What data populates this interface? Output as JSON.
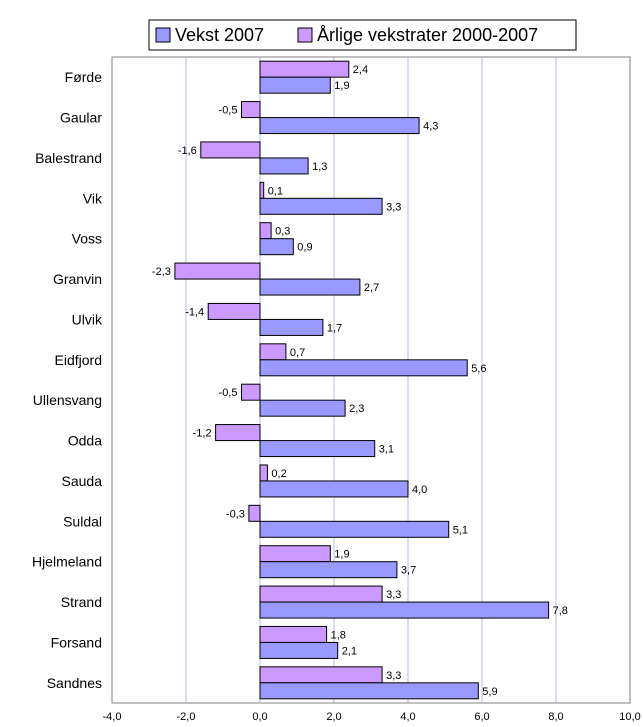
{
  "colors": {
    "series_vekst": "#9999ff",
    "series_arlige": "#cc99ff",
    "grid": "#b8b8e8",
    "plot_border": "#808080",
    "bar_stroke": "#000000"
  },
  "chart_data": {
    "type": "bar",
    "orientation": "horizontal",
    "categories": [
      "Førde",
      "Gaular",
      "Balestrand",
      "Vik",
      "Voss",
      "Granvin",
      "Ulvik",
      "Eidfjord",
      "Ullensvang",
      "Odda",
      "Sauda",
      "Suldal",
      "Hjelmeland",
      "Strand",
      "Forsand",
      "Sandnes"
    ],
    "series": [
      {
        "name": "Vekst 2007",
        "values": [
          1.9,
          4.3,
          1.3,
          3.3,
          0.9,
          2.7,
          1.7,
          5.6,
          2.3,
          3.1,
          4.0,
          5.1,
          3.7,
          7.8,
          2.1,
          5.9
        ],
        "labels": [
          "1,9",
          "4,3",
          "1,3",
          "3,3",
          "0,9",
          "2,7",
          "1,7",
          "5,6",
          "2,3",
          "3,1",
          "4,0",
          "5,1",
          "3,7",
          "7,8",
          "2,1",
          "5,9"
        ]
      },
      {
        "name": "Årlige vekstrater 2000-2007",
        "values": [
          2.4,
          -0.5,
          -1.6,
          0.1,
          0.3,
          -2.3,
          -1.4,
          0.7,
          -0.5,
          -1.2,
          0.2,
          -0.3,
          1.9,
          3.3,
          1.8,
          3.3
        ],
        "labels": [
          "2,4",
          "-0,5",
          "-1,6",
          "0,1",
          "0,3",
          "-2,3",
          "-1,4",
          "0,7",
          "-0,5",
          "-1,2",
          "0,2",
          "-0,3",
          "1,9",
          "3,3",
          "1,8",
          "3,3"
        ]
      }
    ],
    "xlim": [
      -4.0,
      10.0
    ],
    "xticks": [
      -4.0,
      -2.0,
      0.0,
      2.0,
      4.0,
      6.0,
      8.0,
      10.0
    ],
    "xtick_labels": [
      "-4,0",
      "-2,0",
      "0,0",
      "2,0",
      "4,0",
      "6,0",
      "8,0",
      "10,0"
    ],
    "grid": "vertical",
    "legend_position": "top"
  }
}
